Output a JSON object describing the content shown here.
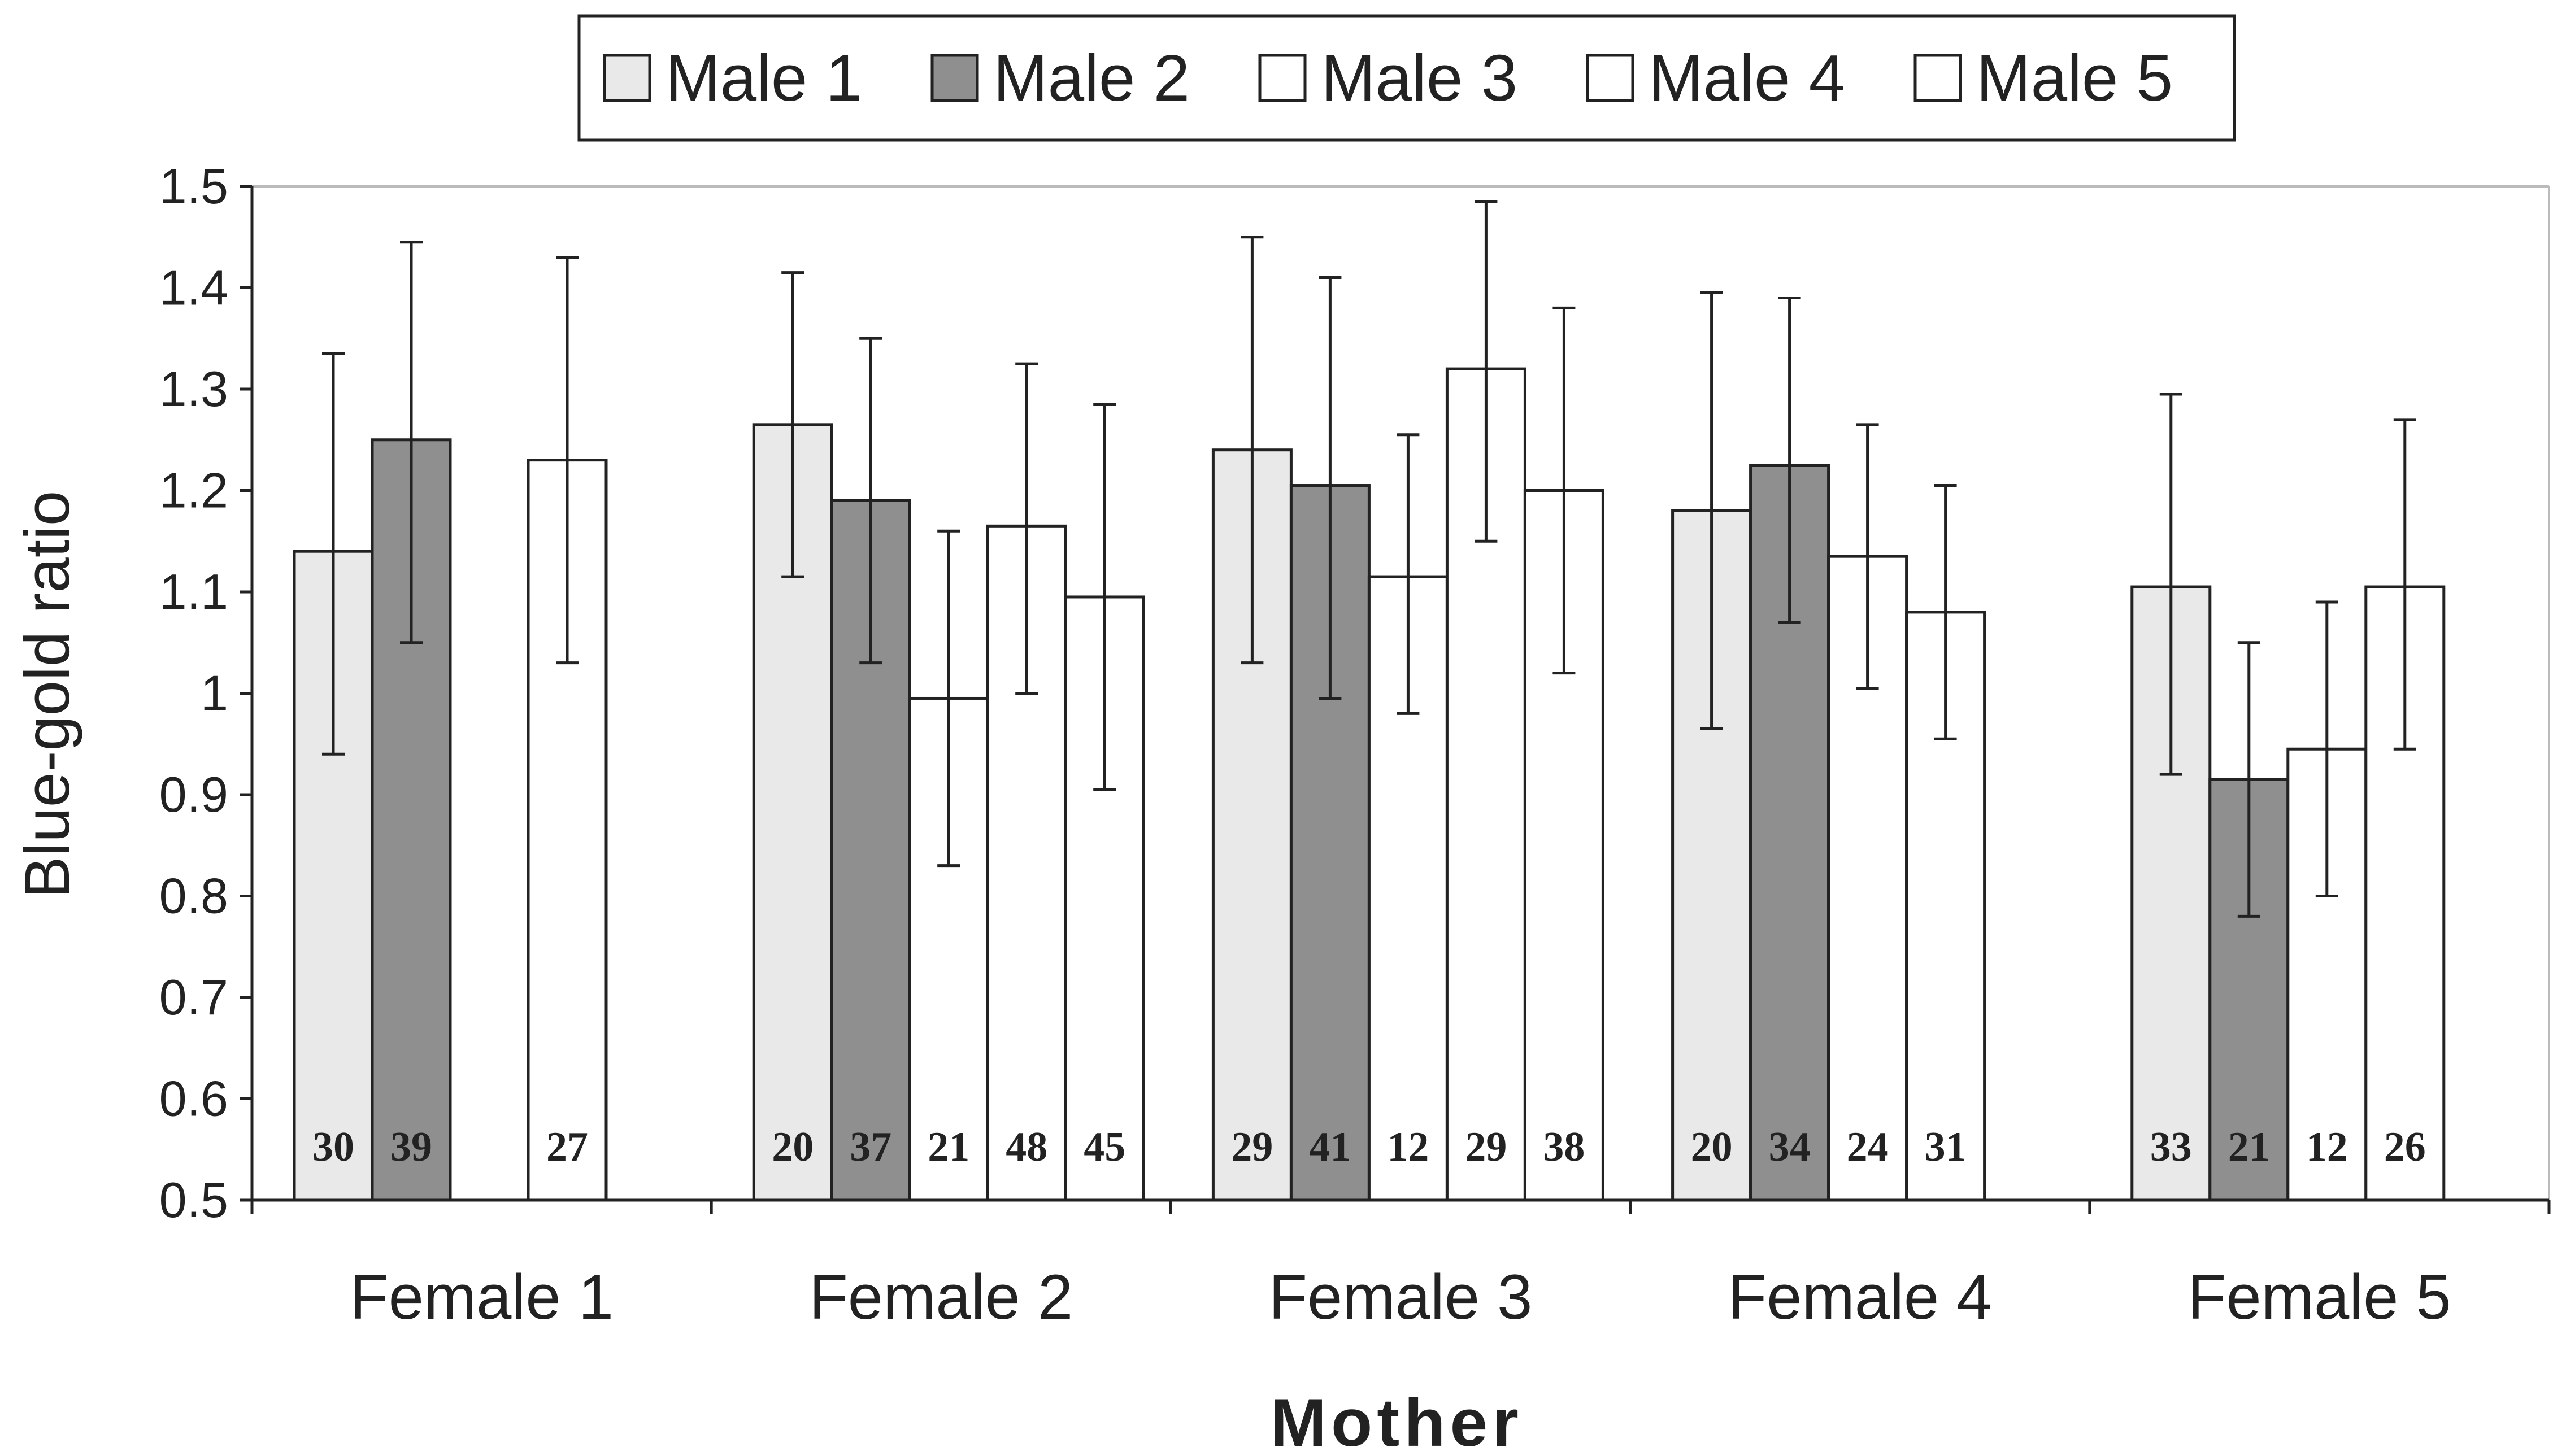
{
  "chart_data": {
    "type": "bar",
    "title": "",
    "xlabel": "Mother",
    "ylabel": "Blue-gold ratio",
    "ylim": [
      0.5,
      1.5
    ],
    "yticks": [
      "1.5",
      "1.4",
      "1.3",
      "1.2",
      "1.1",
      "1",
      "0.9",
      "0.8",
      "0.7",
      "0.6",
      "0.5"
    ],
    "categories": [
      "Female 1",
      "Female 2",
      "Female 3",
      "Female 4",
      "Female 5"
    ],
    "legend_position": "top",
    "grid": false,
    "series": [
      {
        "name": "Male 1",
        "color": "#e9e9e9",
        "values": [
          1.14,
          1.265,
          1.24,
          1.18,
          1.105
        ],
        "err_low": [
          0.94,
          1.115,
          1.03,
          0.965,
          0.92
        ],
        "err_high": [
          1.335,
          1.415,
          1.45,
          1.395,
          1.295
        ],
        "n": [
          "30",
          "20",
          "29",
          "20",
          "33"
        ]
      },
      {
        "name": "Male 2",
        "color": "#8f8f8f",
        "values": [
          1.25,
          1.19,
          1.205,
          1.225,
          0.915
        ],
        "err_low": [
          1.05,
          1.03,
          0.995,
          1.07,
          0.78
        ],
        "err_high": [
          1.445,
          1.35,
          1.41,
          1.39,
          1.05
        ],
        "n": [
          "39",
          "37",
          "41",
          "34",
          "21"
        ]
      },
      {
        "name": "Male 3",
        "color": "#ffffff",
        "values": [
          null,
          0.995,
          1.115,
          1.135,
          0.945
        ],
        "err_low": [
          null,
          0.83,
          0.98,
          1.005,
          0.8
        ],
        "err_high": [
          null,
          1.16,
          1.255,
          1.265,
          1.09
        ],
        "n": [
          null,
          "21",
          "12",
          "24",
          "12"
        ]
      },
      {
        "name": "Male 4",
        "color": "#ffffff",
        "values": [
          1.23,
          1.165,
          1.32,
          1.08,
          1.105
        ],
        "err_low": [
          1.03,
          1.0,
          1.15,
          0.955,
          0.945
        ],
        "err_high": [
          1.43,
          1.325,
          1.485,
          1.205,
          1.27
        ],
        "n": [
          "27",
          "48",
          "29",
          "31",
          "26"
        ]
      },
      {
        "name": "Male 5",
        "color": "#ffffff",
        "values": [
          null,
          1.095,
          1.2,
          null,
          null
        ],
        "err_low": [
          null,
          0.905,
          1.02,
          null,
          null
        ],
        "err_high": [
          null,
          1.285,
          1.38,
          null,
          null
        ],
        "n": [
          null,
          "45",
          "38",
          null,
          null
        ]
      }
    ]
  }
}
